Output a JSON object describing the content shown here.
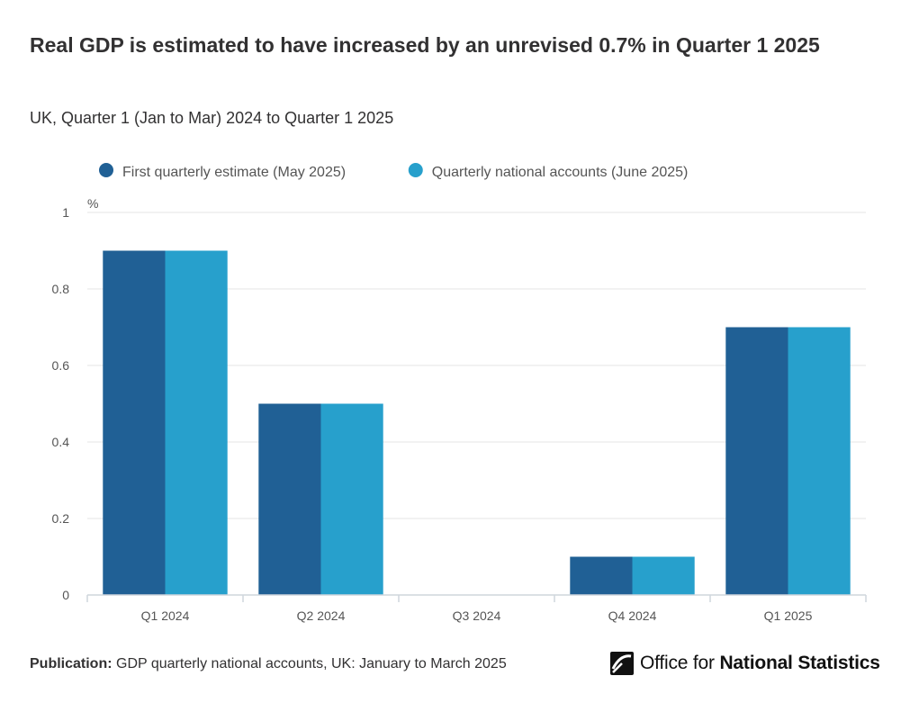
{
  "header": {
    "title": "Real GDP is estimated to have increased by an unrevised 0.7% in Quarter 1 2025",
    "subtitle": "UK, Quarter 1 (Jan to Mar) 2024 to Quarter 1 2025"
  },
  "chart_data": {
    "type": "bar",
    "title": "Real GDP is estimated to have increased by an unrevised 0.7% in Quarter 1 2025",
    "subtitle": "UK, Quarter 1 (Jan to Mar) 2024 to Quarter 1 2025",
    "ylabel": "%",
    "xlabel": "",
    "categories": [
      "Q1 2024",
      "Q2 2024",
      "Q3 2024",
      "Q4 2024",
      "Q1 2025"
    ],
    "series": [
      {
        "name": "First quarterly estimate (May 2025)",
        "color": "#206095",
        "values": [
          0.9,
          0.5,
          0.0,
          0.1,
          0.7
        ]
      },
      {
        "name": "Quarterly national accounts (June 2025)",
        "color": "#27a0cc",
        "values": [
          0.9,
          0.5,
          0.0,
          0.1,
          0.7
        ]
      }
    ],
    "ylim": [
      0,
      1
    ],
    "yticks": [
      0,
      0.2,
      0.4,
      0.6,
      0.8,
      1
    ],
    "ytick_labels": [
      "0",
      "0.2",
      "0.4",
      "0.6",
      "0.8",
      "1"
    ],
    "grid": true,
    "legend_position": "top-left"
  },
  "footer": {
    "publication_label": "Publication:",
    "publication_text": "GDP quarterly national accounts, UK: January to March 2025"
  },
  "logo": {
    "text_light": "Office for ",
    "text_bold": "National Statistics"
  }
}
